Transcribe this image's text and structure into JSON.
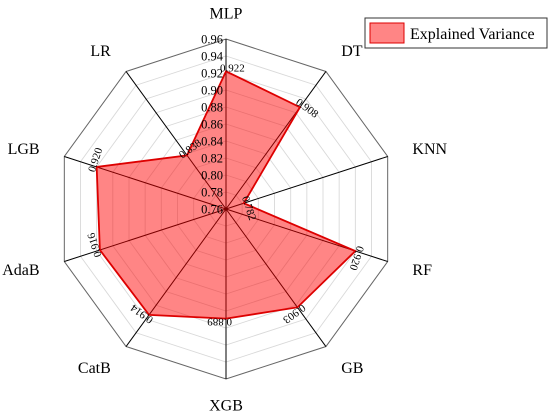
{
  "chart_data": {
    "type": "radar",
    "categories": [
      "MLP",
      "DT",
      "KNN",
      "RF",
      "GB",
      "XGB",
      "CatB",
      "AdaB",
      "LGB",
      "LR"
    ],
    "series": [
      {
        "name": "Explained Variance",
        "values": [
          0.922,
          0.908,
          0.782,
          0.92,
          0.903,
          0.889,
          0.914,
          0.916,
          0.92,
          0.838
        ],
        "data_labels": [
          "0.922",
          "0.908",
          "0.782",
          "0.920",
          "0.903",
          "0.889",
          "0.914",
          "0.916",
          "0.920",
          "0.838"
        ]
      }
    ],
    "radial_ticks": [
      "0.76",
      "0.78",
      "0.80",
      "0.82",
      "0.84",
      "0.86",
      "0.88",
      "0.90",
      "0.92",
      "0.94",
      "0.96"
    ],
    "rlim": [
      0.76,
      0.96
    ],
    "grid": true,
    "legend_position": "top-right",
    "colors": {
      "fill": "#ff7b7b",
      "line": "#dd0000",
      "grid": "#d9d9d9",
      "spoke": "#000000"
    }
  }
}
